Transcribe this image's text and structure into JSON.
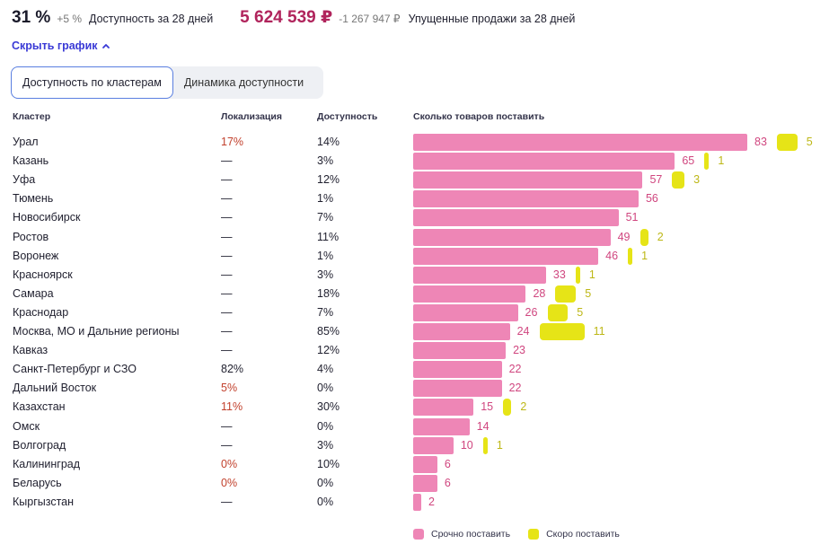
{
  "summary": {
    "availability_pct": "31 %",
    "availability_delta": "+5 %",
    "availability_label": "Доступность за 28 дней",
    "lost_sales": "5 624 539 ₽",
    "lost_sales_delta": "-1 267 947 ₽",
    "lost_sales_label": "Упущенные продажи за 28 дней"
  },
  "toggle_label": "Скрыть график",
  "tabs": [
    {
      "label": "Доступность по кластерам",
      "active": true
    },
    {
      "label": "Динамика доступности",
      "active": false
    }
  ],
  "columns": {
    "cluster": "Кластер",
    "localization": "Локализация",
    "availability": "Доступность",
    "supply": "Сколько товаров поставить"
  },
  "colors": {
    "urgent": "#ee86b6",
    "soon": "#e6e417",
    "accent": "#3a3ad6",
    "money": "#b0245c",
    "loc_warn": "#c2412d"
  },
  "chart_data": {
    "type": "bar",
    "orientation": "horizontal",
    "categories": [
      "Урал",
      "Казань",
      "Уфа",
      "Тюмень",
      "Новосибирск",
      "Ростов",
      "Воронеж",
      "Красноярск",
      "Самара",
      "Краснодар",
      "Москва, МО и Дальние регионы",
      "Кавказ",
      "Санкт-Петербург и СЗО",
      "Дальний Восток",
      "Казахстан",
      "Омск",
      "Волгоград",
      "Калининград",
      "Беларусь",
      "Кыргызстан"
    ],
    "series": [
      {
        "name": "Срочно поставить",
        "values": [
          83,
          65,
          57,
          56,
          51,
          49,
          46,
          33,
          28,
          26,
          24,
          23,
          22,
          22,
          15,
          14,
          10,
          6,
          6,
          2
        ]
      },
      {
        "name": "Скоро поставить",
        "values": [
          5,
          1,
          3,
          null,
          null,
          2,
          1,
          1,
          5,
          5,
          11,
          null,
          null,
          null,
          2,
          null,
          1,
          null,
          null,
          null
        ]
      }
    ],
    "legend": "bottom"
  },
  "rows": [
    {
      "name": "Урал",
      "loc": "17%",
      "loc_warn": true,
      "avail": "14%",
      "urgent": 83,
      "soon": 5,
      "urgent_label": "83",
      "soon_label": "5"
    },
    {
      "name": "Казань",
      "loc": "—",
      "loc_warn": false,
      "avail": "3%",
      "urgent": 65,
      "soon": 1,
      "urgent_label": "65",
      "soon_label": "1"
    },
    {
      "name": "Уфа",
      "loc": "—",
      "loc_warn": false,
      "avail": "12%",
      "urgent": 57,
      "soon": 3,
      "urgent_label": "57",
      "soon_label": "3"
    },
    {
      "name": "Тюмень",
      "loc": "—",
      "loc_warn": false,
      "avail": "1%",
      "urgent": 56,
      "soon": null,
      "urgent_label": "56",
      "soon_label": ""
    },
    {
      "name": "Новосибирск",
      "loc": "—",
      "loc_warn": false,
      "avail": "7%",
      "urgent": 51,
      "soon": null,
      "urgent_label": "51",
      "soon_label": ""
    },
    {
      "name": "Ростов",
      "loc": "—",
      "loc_warn": false,
      "avail": "11%",
      "urgent": 49,
      "soon": 2,
      "urgent_label": "49",
      "soon_label": "2"
    },
    {
      "name": "Воронеж",
      "loc": "—",
      "loc_warn": false,
      "avail": "1%",
      "urgent": 46,
      "soon": 1,
      "urgent_label": "46",
      "soon_label": "1"
    },
    {
      "name": "Красноярск",
      "loc": "—",
      "loc_warn": false,
      "avail": "3%",
      "urgent": 33,
      "soon": 1,
      "urgent_label": "33",
      "soon_label": "1"
    },
    {
      "name": "Самара",
      "loc": "—",
      "loc_warn": false,
      "avail": "18%",
      "urgent": 28,
      "soon": 5,
      "urgent_label": "28",
      "soon_label": "5"
    },
    {
      "name": "Краснодар",
      "loc": "—",
      "loc_warn": false,
      "avail": "7%",
      "urgent": 26,
      "soon": 5,
      "urgent_label": "26",
      "soon_label": "5"
    },
    {
      "name": "Москва, МО и Дальние регионы",
      "loc": "—",
      "loc_warn": false,
      "avail": "85%",
      "urgent": 24,
      "soon": 11,
      "urgent_label": "24",
      "soon_label": "11"
    },
    {
      "name": "Кавказ",
      "loc": "—",
      "loc_warn": false,
      "avail": "12%",
      "urgent": 23,
      "soon": null,
      "urgent_label": "23",
      "soon_label": ""
    },
    {
      "name": "Санкт-Петербург и СЗО",
      "loc": "82%",
      "loc_warn": false,
      "avail": "4%",
      "urgent": 22,
      "soon": null,
      "urgent_label": "22",
      "soon_label": ""
    },
    {
      "name": "Дальний Восток",
      "loc": "5%",
      "loc_warn": true,
      "avail": "0%",
      "urgent": 22,
      "soon": null,
      "urgent_label": "22",
      "soon_label": ""
    },
    {
      "name": "Казахстан",
      "loc": "11%",
      "loc_warn": true,
      "avail": "30%",
      "urgent": 15,
      "soon": 2,
      "urgent_label": "15",
      "soon_label": "2"
    },
    {
      "name": "Омск",
      "loc": "—",
      "loc_warn": false,
      "avail": "0%",
      "urgent": 14,
      "soon": null,
      "urgent_label": "14",
      "soon_label": ""
    },
    {
      "name": "Волгоград",
      "loc": "—",
      "loc_warn": false,
      "avail": "3%",
      "urgent": 10,
      "soon": 1,
      "urgent_label": "10",
      "soon_label": "1"
    },
    {
      "name": "Калининград",
      "loc": "0%",
      "loc_warn": true,
      "avail": "10%",
      "urgent": 6,
      "soon": null,
      "urgent_label": "6",
      "soon_label": ""
    },
    {
      "name": "Беларусь",
      "loc": "0%",
      "loc_warn": true,
      "avail": "0%",
      "urgent": 6,
      "soon": null,
      "urgent_label": "6",
      "soon_label": ""
    },
    {
      "name": "Кыргызстан",
      "loc": "—",
      "loc_warn": false,
      "avail": "0%",
      "urgent": 2,
      "soon": null,
      "urgent_label": "2",
      "soon_label": ""
    }
  ],
  "legend": {
    "urgent_label": "Срочно поставить",
    "soon_label": "Скоро поставить"
  }
}
